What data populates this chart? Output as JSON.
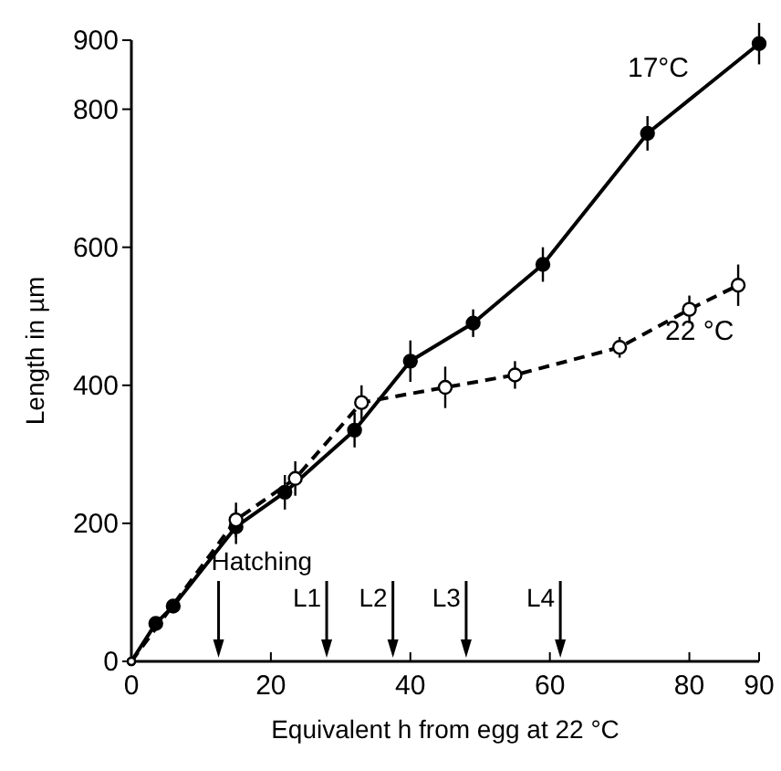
{
  "chart_data": {
    "type": "line",
    "xlabel": "Equivalent h from egg at 22 °C",
    "ylabel": "Length in µm",
    "xlim": [
      0,
      90
    ],
    "ylim": [
      0,
      900
    ],
    "xticks": [
      0,
      20,
      40,
      60,
      80,
      90
    ],
    "yticks": [
      0,
      200,
      400,
      600,
      800,
      900
    ],
    "grid": false,
    "series": [
      {
        "name": "17°C",
        "color": "#000000",
        "line_style": "solid",
        "marker": "circle",
        "x": [
          0,
          3.5,
          6,
          15,
          22,
          32,
          40,
          49,
          59,
          74,
          90
        ],
        "values": [
          0,
          55,
          80,
          195,
          245,
          335,
          435,
          490,
          575,
          765,
          895
        ],
        "errors": [
          null,
          null,
          null,
          25,
          25,
          25,
          30,
          20,
          25,
          25,
          30
        ]
      },
      {
        "name": "22 °C",
        "color": "#000000",
        "line_style": "dashed",
        "marker": "circle",
        "x": [
          0,
          15,
          23.5,
          33,
          45,
          55,
          70,
          80,
          87
        ],
        "values": [
          0,
          205,
          265,
          375,
          397,
          415,
          455,
          510,
          545
        ],
        "errors": [
          null,
          25,
          25,
          25,
          30,
          20,
          15,
          20,
          30
        ]
      }
    ],
    "ref_lines": [
      {
        "axis": "x",
        "value": 12.5,
        "label": "Hatching"
      },
      {
        "axis": "x",
        "value": 28,
        "label": "L1"
      },
      {
        "axis": "x",
        "value": 37.5,
        "label": "L2"
      },
      {
        "axis": "x",
        "value": 48,
        "label": "L3"
      },
      {
        "axis": "x",
        "value": 61.5,
        "label": "L4"
      }
    ]
  }
}
